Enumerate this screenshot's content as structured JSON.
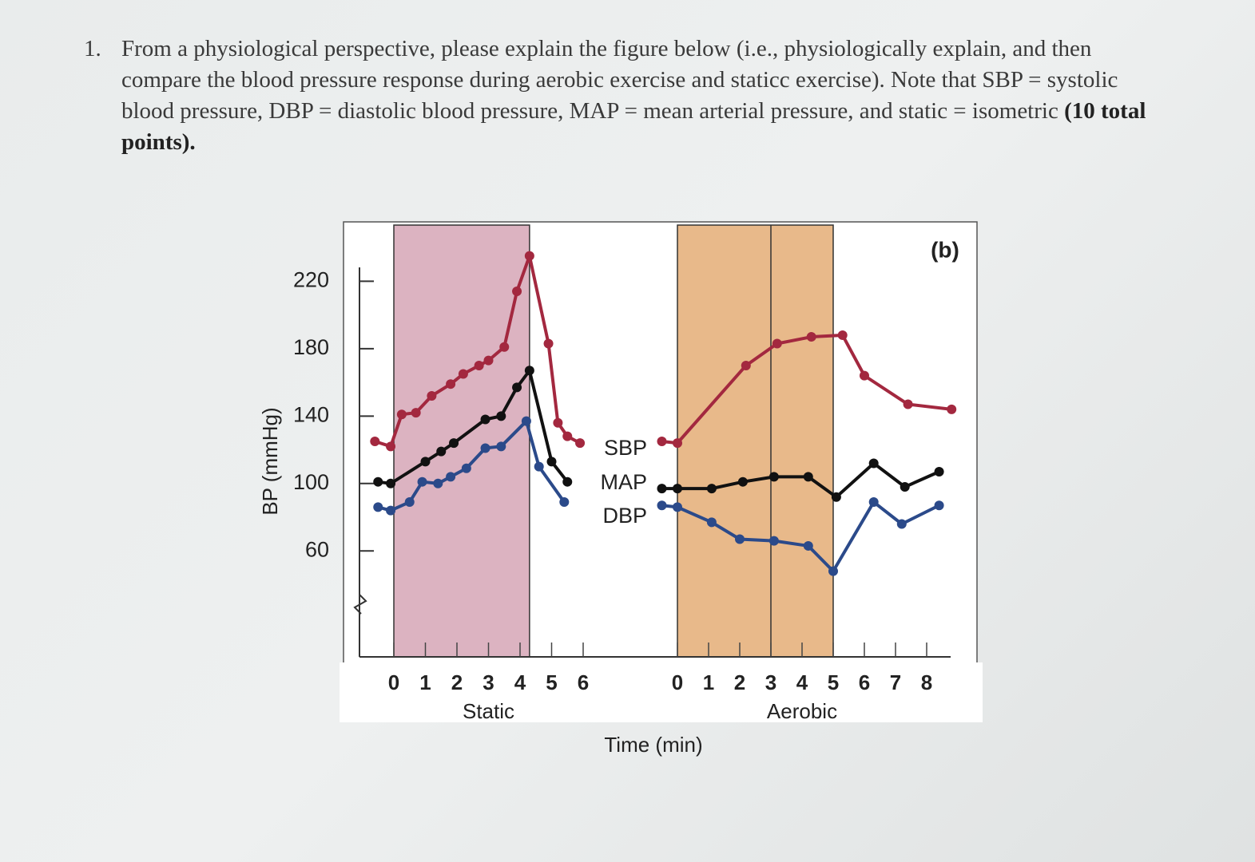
{
  "question": {
    "number": "1.",
    "text": "From a physiological perspective, please explain the figure below (i.e., physiologically explain, and then compare the blood pressure response during aerobic exercise and staticc exercise). Note that SBP = systolic blood pressure, DBP = diastolic blood pressure, MAP = mean arterial pressure, and static = isometric",
    "points": "(10 total points)."
  },
  "chart_data": {
    "type": "line",
    "label": "(b)",
    "y_label": "BP (mmHg)",
    "x_label": "Time (min)",
    "ylim": [
      0,
      250
    ],
    "yticks": [
      60,
      100,
      140,
      180,
      220
    ],
    "panels": [
      {
        "name": "Static",
        "xlim": [
          -1,
          6.5
        ],
        "xticks": [
          0,
          1,
          2,
          3,
          4,
          5,
          6
        ],
        "exercise_period": [
          0,
          4.3
        ],
        "series": [
          {
            "name": "SBP",
            "color": "#a3283f",
            "x": [
              -0.6,
              -0.1,
              0.25,
              0.7,
              1.2,
              1.8,
              2.2,
              2.7,
              3.0,
              3.5,
              3.9,
              4.3,
              4.9,
              5.2,
              5.5,
              5.9
            ],
            "values": [
              125,
              122,
              141,
              142,
              152,
              159,
              165,
              170,
              173,
              181,
              214,
              235,
              183,
              136,
              128,
              124
            ]
          },
          {
            "name": "MAP",
            "color": "#111111",
            "x": [
              -0.5,
              -0.1,
              1.0,
              1.5,
              1.9,
              2.9,
              3.4,
              3.9,
              4.3,
              5.0,
              5.5
            ],
            "values": [
              101,
              100,
              113,
              119,
              124,
              138,
              140,
              157,
              167,
              113,
              101
            ]
          },
          {
            "name": "DBP",
            "color": "#2b4a8a",
            "x": [
              -0.5,
              -0.1,
              0.5,
              0.9,
              1.4,
              1.8,
              2.3,
              2.9,
              3.4,
              4.2,
              4.6,
              5.4
            ],
            "values": [
              86,
              84,
              89,
              101,
              100,
              104,
              109,
              121,
              122,
              137,
              110,
              89
            ]
          }
        ]
      },
      {
        "name": "Aerobic",
        "xlim": [
          -0.6,
          9
        ],
        "xticks": [
          0,
          1,
          2,
          3,
          4,
          5,
          6,
          7,
          8
        ],
        "exercise_period": [
          0,
          3,
          5
        ],
        "series": [
          {
            "color": "#a3283f",
            "x": [
              -0.5,
              0,
              2.2,
              3.2,
              4.3,
              5.3,
              6.0,
              7.4,
              8.8
            ],
            "values": [
              125,
              124,
              170,
              183,
              187,
              188,
              164,
              147,
              144
            ]
          },
          {
            "color": "#111111",
            "x": [
              -0.5,
              0,
              1.1,
              2.1,
              3.1,
              4.2,
              5.1,
              6.3,
              7.3,
              8.4
            ],
            "values": [
              97,
              97,
              97,
              101,
              104,
              104,
              92,
              112,
              98,
              107
            ]
          },
          {
            "color": "#2b4a8a",
            "x": [
              -0.5,
              0,
              1.1,
              2.0,
              3.1,
              4.2,
              5.0,
              6.3,
              7.2,
              8.4
            ],
            "values": [
              87,
              86,
              77,
              67,
              66,
              63,
              48,
              89,
              76,
              87
            ]
          }
        ]
      }
    ]
  }
}
